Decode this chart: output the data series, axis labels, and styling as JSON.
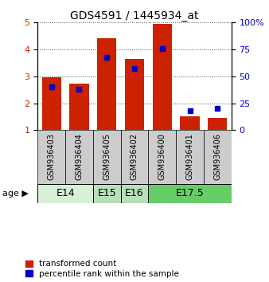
{
  "title": "GDS4591 / 1445934_at",
  "samples": [
    "GSM936403",
    "GSM936404",
    "GSM936405",
    "GSM936402",
    "GSM936400",
    "GSM936401",
    "GSM936406"
  ],
  "red_values": [
    2.95,
    2.73,
    4.43,
    3.65,
    4.95,
    1.52,
    1.45
  ],
  "blue_values": [
    2.62,
    2.52,
    3.72,
    3.28,
    4.02,
    1.72,
    1.82
  ],
  "age_groups": [
    {
      "label": "E14",
      "start": 0,
      "end": 2,
      "color": "#d8f0d8"
    },
    {
      "label": "E15",
      "start": 2,
      "end": 3,
      "color": "#b8e0b8"
    },
    {
      "label": "E16",
      "start": 3,
      "end": 4,
      "color": "#b8e0b8"
    },
    {
      "label": "E17.5",
      "start": 4,
      "end": 7,
      "color": "#66cc66"
    }
  ],
  "sample_bg_color": "#cccccc",
  "ylim": [
    1,
    5
  ],
  "y_ticks_left": [
    1,
    2,
    3,
    4,
    5
  ],
  "y_ticks_right": [
    0,
    25,
    50,
    75,
    100
  ],
  "red_color": "#cc2200",
  "blue_color": "#0000cc",
  "bar_width": 0.7,
  "blue_marker_size": 5,
  "x_label_fontsize": 7,
  "age_label_fontsize": 9,
  "title_fontsize": 10,
  "tick_fontsize": 8,
  "legend_fontsize": 7.5,
  "age_marker": "▶"
}
